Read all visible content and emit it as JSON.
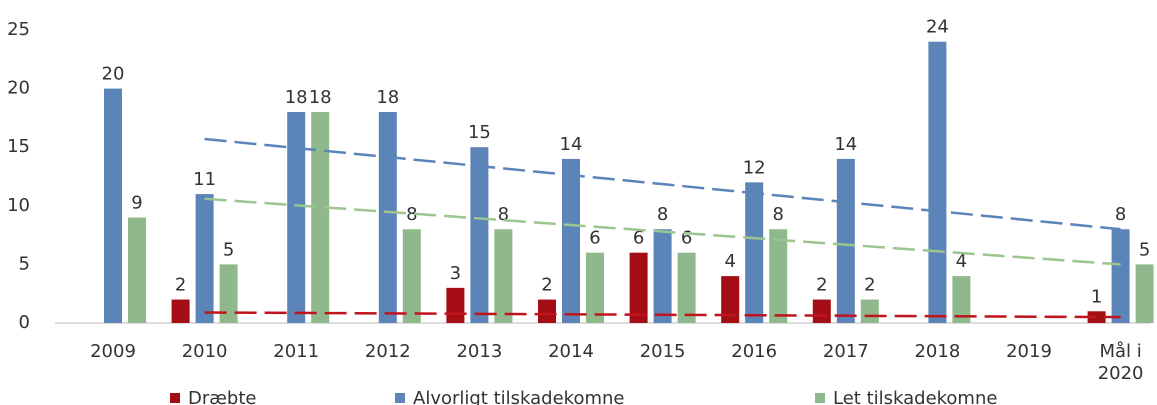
{
  "chart_data": {
    "type": "bar",
    "categories": [
      "2009",
      "2010",
      "2011",
      "2012",
      "2013",
      "2014",
      "2015",
      "2016",
      "2017",
      "2018",
      "2019",
      "Mål i 2020"
    ],
    "series": [
      {
        "name": "Dræbte",
        "color": "#a50d15",
        "values": [
          null,
          2,
          null,
          null,
          3,
          2,
          6,
          4,
          2,
          null,
          null,
          1
        ],
        "trend": [
          null,
          0.9,
          null,
          null,
          null,
          null,
          null,
          null,
          null,
          null,
          null,
          0.5
        ],
        "trend_color": "#c0141c"
      },
      {
        "name": "Alvorligt tilskadekomne",
        "color": "#5b84b8",
        "values": [
          20,
          11,
          18,
          18,
          15,
          14,
          8,
          12,
          14,
          24,
          null,
          8
        ],
        "trend": [
          null,
          15.7,
          null,
          null,
          null,
          null,
          null,
          null,
          null,
          null,
          null,
          8
        ],
        "trend_color": "#5b84b8"
      },
      {
        "name": "Let tilskadekomne",
        "color": "#8fb98c",
        "values": [
          9,
          5,
          18,
          8,
          8,
          6,
          6,
          8,
          2,
          4,
          null,
          5
        ],
        "trend": [
          null,
          10.6,
          null,
          null,
          null,
          null,
          null,
          null,
          null,
          null,
          null,
          5
        ],
        "trend_color": "#9cc58f"
      }
    ],
    "ylim": [
      0,
      25
    ],
    "yticks": [
      0,
      5,
      10,
      15,
      20,
      25
    ],
    "grid": false,
    "legend": "bottom"
  }
}
